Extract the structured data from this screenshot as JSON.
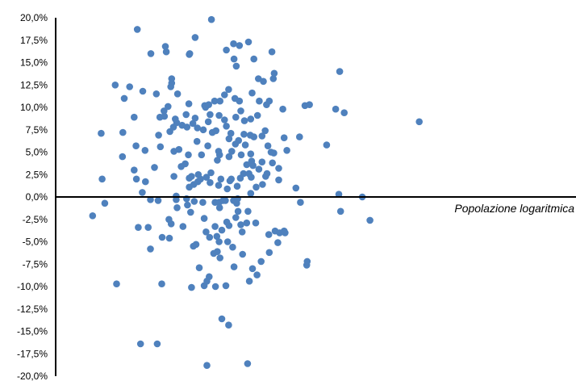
{
  "chart_data": {
    "type": "scatter",
    "title": "",
    "xlabel": "Popolazione logaritmica",
    "ylabel": "",
    "ylim": [
      -20,
      20
    ],
    "xlim": [
      0,
      100
    ],
    "grid": false,
    "legend": "none",
    "marker_color": "#4F81BD",
    "y_tick_labels": [
      "20,0%",
      "17,5%",
      "15,0%",
      "12,5%",
      "10,0%",
      "7,5%",
      "5,0%",
      "2,5%",
      "0,0%",
      "-2,5%",
      "-5,0%",
      "-7,5%",
      "-10,0%",
      "-12,5%",
      "-15,0%",
      "-17,5%",
      "-20,0%"
    ],
    "y_tick_values": [
      20,
      17.5,
      15,
      12.5,
      10,
      7.5,
      5,
      2.5,
      0,
      -2.5,
      -5,
      -7.5,
      -10,
      -12.5,
      -15,
      -17.5,
      -20
    ],
    "points": [
      {
        "x": 20.5,
        "y": -2.1
      },
      {
        "x": 22.6,
        "y": 2.0
      },
      {
        "x": 22.4,
        "y": 7.1
      },
      {
        "x": 23.2,
        "y": -0.7
      },
      {
        "x": 25.5,
        "y": 12.5
      },
      {
        "x": 25.8,
        "y": -9.7
      },
      {
        "x": 27.1,
        "y": 4.5
      },
      {
        "x": 27.2,
        "y": 7.2
      },
      {
        "x": 27.5,
        "y": 11.0
      },
      {
        "x": 28.7,
        "y": 12.3
      },
      {
        "x": 29.7,
        "y": 3.0
      },
      {
        "x": 29.7,
        "y": 8.9
      },
      {
        "x": 30.1,
        "y": 5.7
      },
      {
        "x": 30.2,
        "y": 2.0
      },
      {
        "x": 30.4,
        "y": 18.7
      },
      {
        "x": 30.6,
        "y": -3.4
      },
      {
        "x": 31.1,
        "y": -16.4
      },
      {
        "x": 31.5,
        "y": 0.5
      },
      {
        "x": 31.6,
        "y": 11.8
      },
      {
        "x": 32.1,
        "y": 5.2
      },
      {
        "x": 32.2,
        "y": 1.7
      },
      {
        "x": 32.8,
        "y": -3.4
      },
      {
        "x": 33.3,
        "y": -0.3
      },
      {
        "x": 33.3,
        "y": -5.8
      },
      {
        "x": 33.4,
        "y": 16.0
      },
      {
        "x": 34.2,
        "y": 3.3
      },
      {
        "x": 34.6,
        "y": 11.5
      },
      {
        "x": 34.8,
        "y": -16.4
      },
      {
        "x": 35.0,
        "y": -0.4
      },
      {
        "x": 35.1,
        "y": 6.9
      },
      {
        "x": 35.4,
        "y": 8.9
      },
      {
        "x": 35.5,
        "y": 5.6
      },
      {
        "x": 35.8,
        "y": -9.7
      },
      {
        "x": 35.9,
        "y": -4.5
      },
      {
        "x": 36.3,
        "y": 9.6
      },
      {
        "x": 36.4,
        "y": 9.0
      },
      {
        "x": 36.6,
        "y": 16.8
      },
      {
        "x": 36.8,
        "y": 16.2
      },
      {
        "x": 37.2,
        "y": 10.1
      },
      {
        "x": 37.4,
        "y": -2.5
      },
      {
        "x": 37.5,
        "y": -4.6
      },
      {
        "x": 37.6,
        "y": 7.3
      },
      {
        "x": 37.8,
        "y": 12.3
      },
      {
        "x": 37.9,
        "y": -3.0
      },
      {
        "x": 38.0,
        "y": 12.7
      },
      {
        "x": 38.0,
        "y": 13.2
      },
      {
        "x": 38.4,
        "y": 7.8
      },
      {
        "x": 38.5,
        "y": 2.3
      },
      {
        "x": 38.5,
        "y": 5.1
      },
      {
        "x": 38.8,
        "y": 8.7
      },
      {
        "x": 39.0,
        "y": -0.3
      },
      {
        "x": 39.0,
        "y": 0.1
      },
      {
        "x": 39.1,
        "y": 8.3
      },
      {
        "x": 39.2,
        "y": -1.2
      },
      {
        "x": 39.3,
        "y": 11.5
      },
      {
        "x": 39.6,
        "y": 5.3
      },
      {
        "x": 40.1,
        "y": 3.4
      },
      {
        "x": 40.3,
        "y": 8.0
      },
      {
        "x": 40.5,
        "y": -3.3
      },
      {
        "x": 41.0,
        "y": 3.7
      },
      {
        "x": 41.2,
        "y": 9.2
      },
      {
        "x": 41.3,
        "y": -0.2
      },
      {
        "x": 41.4,
        "y": 7.8
      },
      {
        "x": 41.5,
        "y": -0.9
      },
      {
        "x": 41.7,
        "y": 4.7
      },
      {
        "x": 41.8,
        "y": 10.4
      },
      {
        "x": 41.9,
        "y": 15.9
      },
      {
        "x": 41.9,
        "y": 1.1
      },
      {
        "x": 41.9,
        "y": 2.1
      },
      {
        "x": 42.0,
        "y": 16.0
      },
      {
        "x": 42.2,
        "y": -1.7
      },
      {
        "x": 42.4,
        "y": 2.3
      },
      {
        "x": 42.4,
        "y": -10.1
      },
      {
        "x": 42.7,
        "y": 8.2
      },
      {
        "x": 42.8,
        "y": -5.5
      },
      {
        "x": 42.9,
        "y": 1.4
      },
      {
        "x": 43.0,
        "y": -0.5
      },
      {
        "x": 43.2,
        "y": 8.8
      },
      {
        "x": 43.2,
        "y": 17.8
      },
      {
        "x": 43.4,
        "y": -5.3
      },
      {
        "x": 43.6,
        "y": 6.2
      },
      {
        "x": 43.7,
        "y": 7.7
      },
      {
        "x": 43.8,
        "y": 1.7
      },
      {
        "x": 43.9,
        "y": 2.5
      },
      {
        "x": 44.1,
        "y": -7.9
      },
      {
        "x": 44.4,
        "y": 2.0
      },
      {
        "x": 44.6,
        "y": 4.7
      },
      {
        "x": 44.9,
        "y": -0.6
      },
      {
        "x": 45.0,
        "y": 7.5
      },
      {
        "x": 45.2,
        "y": -2.4
      },
      {
        "x": 45.2,
        "y": -9.9
      },
      {
        "x": 45.3,
        "y": 10.2
      },
      {
        "x": 45.5,
        "y": 10.0
      },
      {
        "x": 45.6,
        "y": -3.9
      },
      {
        "x": 45.7,
        "y": 2.2
      },
      {
        "x": 45.8,
        "y": -9.4
      },
      {
        "x": 45.8,
        "y": -18.8
      },
      {
        "x": 46.0,
        "y": 5.7
      },
      {
        "x": 46.1,
        "y": 8.4
      },
      {
        "x": 46.2,
        "y": 10.3
      },
      {
        "x": 46.3,
        "y": -8.9
      },
      {
        "x": 46.4,
        "y": -4.5
      },
      {
        "x": 46.5,
        "y": 1.6
      },
      {
        "x": 46.5,
        "y": 9.2
      },
      {
        "x": 46.7,
        "y": 2.7
      },
      {
        "x": 46.8,
        "y": 19.8
      },
      {
        "x": 47.0,
        "y": 7.2
      },
      {
        "x": 47.3,
        "y": -6.3
      },
      {
        "x": 47.5,
        "y": 10.7
      },
      {
        "x": 47.6,
        "y": -0.6
      },
      {
        "x": 47.6,
        "y": -3.3
      },
      {
        "x": 47.7,
        "y": -10.0
      },
      {
        "x": 47.8,
        "y": 7.4
      },
      {
        "x": 48.0,
        "y": -4.4
      },
      {
        "x": 48.1,
        "y": -6.1
      },
      {
        "x": 48.1,
        "y": 4.1
      },
      {
        "x": 48.4,
        "y": 5.1
      },
      {
        "x": 48.4,
        "y": 1.3
      },
      {
        "x": 48.5,
        "y": -5.0
      },
      {
        "x": 48.5,
        "y": -0.6
      },
      {
        "x": 48.5,
        "y": 9.1
      },
      {
        "x": 48.6,
        "y": 4.7
      },
      {
        "x": 48.6,
        "y": -1.2
      },
      {
        "x": 48.7,
        "y": -6.8
      },
      {
        "x": 48.7,
        "y": 10.7
      },
      {
        "x": 48.9,
        "y": 2.0
      },
      {
        "x": 49.1,
        "y": -13.6
      },
      {
        "x": 49.1,
        "y": -3.7
      },
      {
        "x": 49.4,
        "y": -0.4
      },
      {
        "x": 49.7,
        "y": 11.4
      },
      {
        "x": 49.7,
        "y": 8.6
      },
      {
        "x": 49.9,
        "y": -0.4
      },
      {
        "x": 50.0,
        "y": -9.9
      },
      {
        "x": 50.1,
        "y": 7.9
      },
      {
        "x": 50.1,
        "y": 16.4
      },
      {
        "x": 50.2,
        "y": -2.8
      },
      {
        "x": 50.3,
        "y": 0.9
      },
      {
        "x": 50.4,
        "y": -5.0
      },
      {
        "x": 50.6,
        "y": -14.3
      },
      {
        "x": 50.6,
        "y": 12.0
      },
      {
        "x": 50.7,
        "y": 6.5
      },
      {
        "x": 50.7,
        "y": -3.2
      },
      {
        "x": 50.7,
        "y": 4.5
      },
      {
        "x": 50.9,
        "y": 1.8
      },
      {
        "x": 51.1,
        "y": 7.1
      },
      {
        "x": 51.2,
        "y": 2.0
      },
      {
        "x": 51.3,
        "y": 5.1
      },
      {
        "x": 51.5,
        "y": -5.6
      },
      {
        "x": 51.7,
        "y": 17.1
      },
      {
        "x": 51.7,
        "y": -0.4
      },
      {
        "x": 51.8,
        "y": -7.8
      },
      {
        "x": 51.8,
        "y": 15.4
      },
      {
        "x": 52.0,
        "y": 11.0
      },
      {
        "x": 52.1,
        "y": 5.9
      },
      {
        "x": 52.2,
        "y": 8.9
      },
      {
        "x": 52.2,
        "y": -2.3
      },
      {
        "x": 52.3,
        "y": 14.6
      },
      {
        "x": 52.4,
        "y": -0.7
      },
      {
        "x": 52.5,
        "y": 1.2
      },
      {
        "x": 52.6,
        "y": -0.2
      },
      {
        "x": 52.7,
        "y": -1.6
      },
      {
        "x": 52.8,
        "y": 6.3
      },
      {
        "x": 53.0,
        "y": 10.7
      },
      {
        "x": 53.0,
        "y": 16.9
      },
      {
        "x": 53.2,
        "y": 2.1
      },
      {
        "x": 53.3,
        "y": -3.1
      },
      {
        "x": 53.3,
        "y": 9.6
      },
      {
        "x": 53.4,
        "y": 4.7
      },
      {
        "x": 53.6,
        "y": -3.9
      },
      {
        "x": 53.7,
        "y": -6.4
      },
      {
        "x": 53.9,
        "y": 2.6
      },
      {
        "x": 54.0,
        "y": 7.0
      },
      {
        "x": 54.1,
        "y": 8.5
      },
      {
        "x": 54.3,
        "y": 5.8
      },
      {
        "x": 54.6,
        "y": -2.9
      },
      {
        "x": 54.6,
        "y": 3.6
      },
      {
        "x": 54.8,
        "y": -18.6
      },
      {
        "x": 54.9,
        "y": -1.6
      },
      {
        "x": 55.0,
        "y": 17.3
      },
      {
        "x": 55.1,
        "y": 2.6
      },
      {
        "x": 55.2,
        "y": -9.4
      },
      {
        "x": 55.4,
        "y": 6.9
      },
      {
        "x": 55.5,
        "y": 8.7
      },
      {
        "x": 55.5,
        "y": 4.8
      },
      {
        "x": 55.5,
        "y": 0.4
      },
      {
        "x": 55.6,
        "y": 2.2
      },
      {
        "x": 55.7,
        "y": 4.0
      },
      {
        "x": 55.8,
        "y": 11.6
      },
      {
        "x": 55.9,
        "y": -8.0
      },
      {
        "x": 56.0,
        "y": 3.5
      },
      {
        "x": 56.2,
        "y": 15.4
      },
      {
        "x": 56.2,
        "y": 6.7
      },
      {
        "x": 56.6,
        "y": -2.9
      },
      {
        "x": 56.7,
        "y": 1.1
      },
      {
        "x": 56.9,
        "y": -8.7
      },
      {
        "x": 57.0,
        "y": 9.1
      },
      {
        "x": 57.2,
        "y": 13.2
      },
      {
        "x": 57.3,
        "y": 3.1
      },
      {
        "x": 57.4,
        "y": 10.7
      },
      {
        "x": 57.8,
        "y": -7.2
      },
      {
        "x": 58.0,
        "y": 6.8
      },
      {
        "x": 58.0,
        "y": 3.9
      },
      {
        "x": 58.1,
        "y": 1.4
      },
      {
        "x": 58.3,
        "y": 12.9
      },
      {
        "x": 58.7,
        "y": 7.4
      },
      {
        "x": 58.8,
        "y": 2.3
      },
      {
        "x": 59.0,
        "y": 10.3
      },
      {
        "x": 59.1,
        "y": 2.6
      },
      {
        "x": 59.3,
        "y": 5.7
      },
      {
        "x": 59.5,
        "y": -4.2
      },
      {
        "x": 59.6,
        "y": -6.2
      },
      {
        "x": 59.6,
        "y": 10.7
      },
      {
        "x": 60.0,
        "y": 5.0
      },
      {
        "x": 60.2,
        "y": 16.2
      },
      {
        "x": 60.3,
        "y": 3.8
      },
      {
        "x": 60.5,
        "y": 13.2
      },
      {
        "x": 60.6,
        "y": 4.9
      },
      {
        "x": 60.7,
        "y": 13.8
      },
      {
        "x": 60.9,
        "y": -3.8
      },
      {
        "x": 61.5,
        "y": -5.1
      },
      {
        "x": 61.7,
        "y": 1.9
      },
      {
        "x": 61.7,
        "y": 3.2
      },
      {
        "x": 61.9,
        "y": -4.0
      },
      {
        "x": 62.6,
        "y": 9.8
      },
      {
        "x": 62.9,
        "y": 6.6
      },
      {
        "x": 62.9,
        "y": -3.8
      },
      {
        "x": 63.1,
        "y": -4.0
      },
      {
        "x": 63.5,
        "y": 5.2
      },
      {
        "x": 65.5,
        "y": 1.0
      },
      {
        "x": 66.3,
        "y": 6.7
      },
      {
        "x": 66.5,
        "y": -0.6
      },
      {
        "x": 67.5,
        "y": 10.2
      },
      {
        "x": 67.9,
        "y": -7.6
      },
      {
        "x": 68.0,
        "y": -7.2
      },
      {
        "x": 68.5,
        "y": 10.3
      },
      {
        "x": 72.3,
        "y": 5.8
      },
      {
        "x": 74.3,
        "y": 9.8
      },
      {
        "x": 75.0,
        "y": 0.3
      },
      {
        "x": 75.2,
        "y": 14.0
      },
      {
        "x": 75.4,
        "y": -1.6
      },
      {
        "x": 76.2,
        "y": 9.4
      },
      {
        "x": 80.2,
        "y": 0.0
      },
      {
        "x": 81.9,
        "y": -2.6
      },
      {
        "x": 92.8,
        "y": 8.4
      }
    ]
  }
}
